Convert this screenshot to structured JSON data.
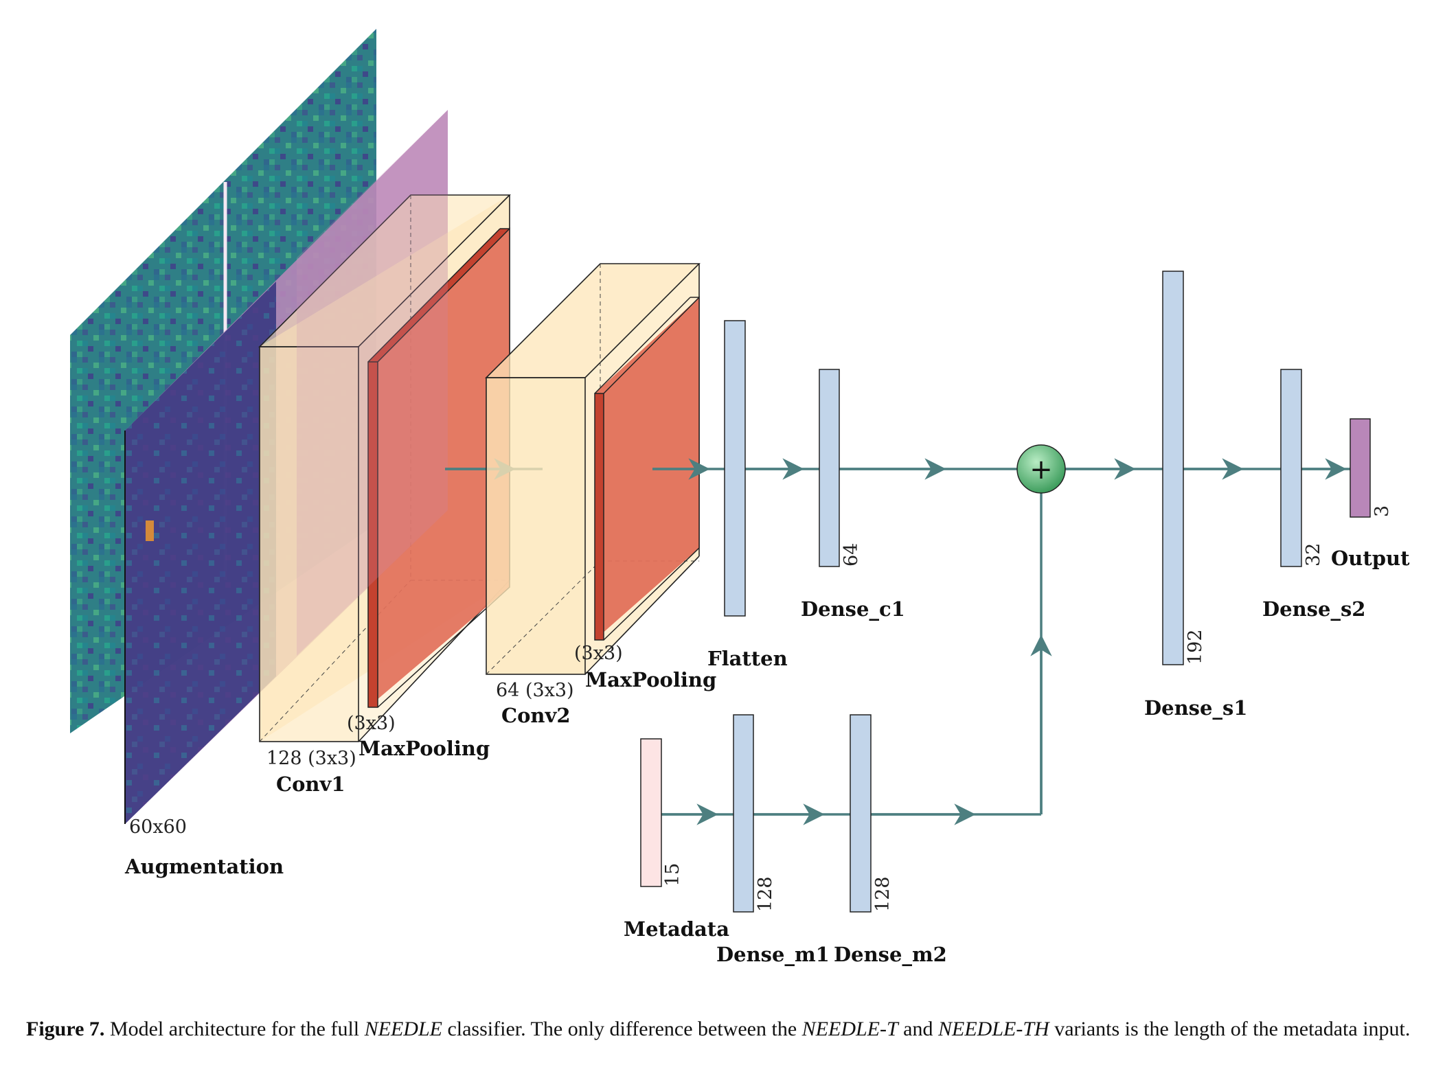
{
  "layers": {
    "input": {
      "label": "Augmentation",
      "size": "60x60"
    },
    "conv1": {
      "label": "Conv1",
      "size": "128 (3x3)"
    },
    "pool1": {
      "label": "MaxPooling",
      "size": "(3x3)"
    },
    "conv2": {
      "label": "Conv2",
      "size": "64 (3x3)"
    },
    "pool2": {
      "label": "MaxPooling",
      "size": "(3x3)"
    },
    "flatten": {
      "label": "Flatten"
    },
    "dense_c1": {
      "label": "Dense_c1",
      "size": "64"
    },
    "dense_s1": {
      "label": "Dense_s1",
      "size": "192"
    },
    "dense_s2": {
      "label": "Dense_s2",
      "size": "32"
    },
    "output": {
      "label": "Output",
      "size": "3"
    },
    "metadata": {
      "label": "Metadata",
      "size": "15"
    },
    "dense_m1": {
      "label": "Dense_m1",
      "size": "128"
    },
    "dense_m2": {
      "label": "Dense_m2",
      "size": "128"
    }
  },
  "merge_symbol": "+",
  "colors": {
    "arrow": "#4d7f80",
    "dense": "#c2d5ea",
    "output": "#b987b9",
    "metadata": "#fde4e4",
    "conv": "#fde6b8",
    "pool": "#e2705a",
    "merge": "#5cb97a",
    "image_bg": "#2f7f86"
  },
  "caption": {
    "figure": "Figure 7.",
    "part1": " Model architecture for the full ",
    "needle": "NEEDLE",
    "part2": " classifier. The only difference between the ",
    "needle_t": "NEEDLE-T",
    "part3": " and ",
    "needle_th": "NEEDLE-TH",
    "part4": " variants is the length of the metadata input."
  }
}
